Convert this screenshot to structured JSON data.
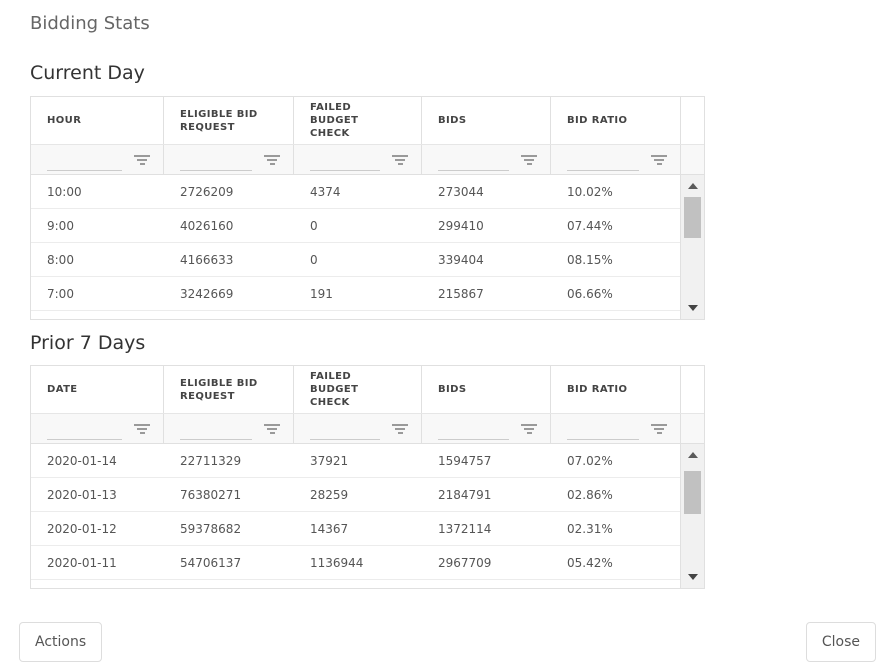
{
  "title": "Bidding Stats",
  "sections": [
    {
      "heading": "Current Day",
      "columns": [
        "HOUR",
        "ELIGIBLE BID\nREQUEST",
        "FAILED\nBUDGET\nCHECK",
        "BIDS",
        "BID RATIO"
      ],
      "rows": [
        [
          "10:00",
          "2726209",
          "4374",
          "273044",
          "10.02%"
        ],
        [
          "9:00",
          "4026160",
          "0",
          "299410",
          "07.44%"
        ],
        [
          "8:00",
          "4166633",
          "0",
          "339404",
          "08.15%"
        ],
        [
          "7:00",
          "3242669",
          "191",
          "215867",
          "06.66%"
        ]
      ]
    },
    {
      "heading": "Prior 7 Days",
      "columns": [
        "DATE",
        "ELIGIBLE BID\nREQUEST",
        "FAILED\nBUDGET\nCHECK",
        "BIDS",
        "BID RATIO"
      ],
      "rows": [
        [
          "2020-01-14",
          "22711329",
          "37921",
          "1594757",
          "07.02%"
        ],
        [
          "2020-01-13",
          "76380271",
          "28259",
          "2184791",
          "02.86%"
        ],
        [
          "2020-01-12",
          "59378682",
          "14367",
          "1372114",
          "02.31%"
        ],
        [
          "2020-01-11",
          "54706137",
          "1136944",
          "2967709",
          "05.42%"
        ]
      ]
    }
  ],
  "filter": {
    "value": "",
    "placeholder": ""
  },
  "footer": {
    "actions_label": "Actions",
    "close_label": "Close"
  },
  "colors": {
    "heading": "#333333",
    "title": "#666666",
    "border": "#e0e0e0",
    "filter_row_bg": "#f8f8f8",
    "scroll_thumb": "#c1c1c1"
  }
}
